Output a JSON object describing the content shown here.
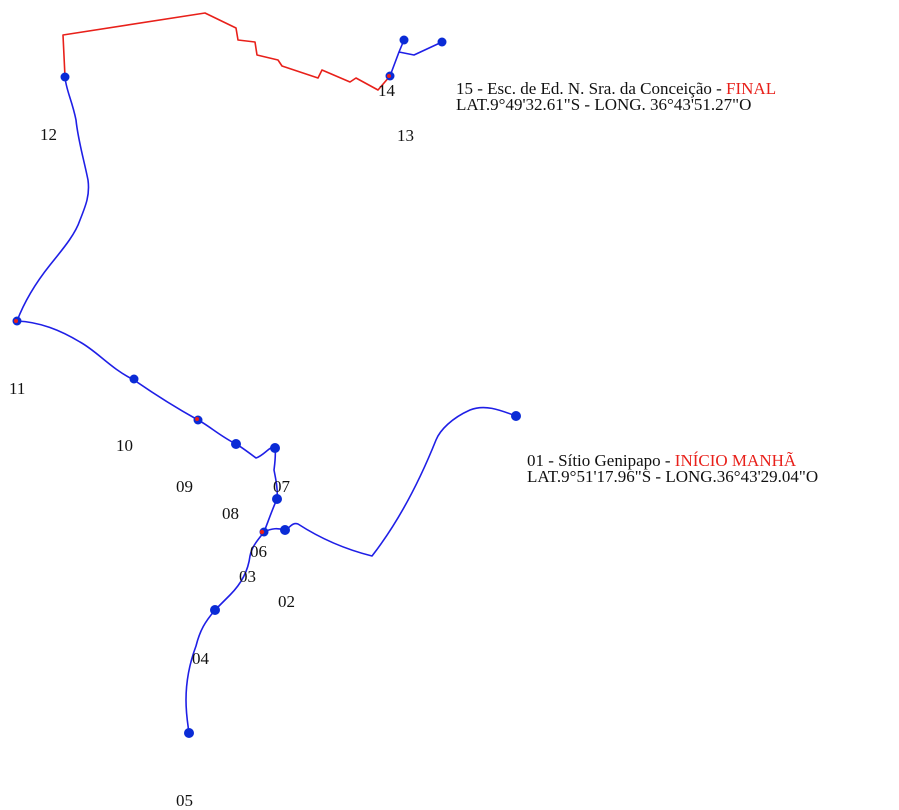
{
  "route": {
    "colors": {
      "morning": "#1f1fe6",
      "final": "#e8201a",
      "stop": "#0a2bd6",
      "stop_red_core": "#e8201a"
    },
    "stop_labels": [
      "01",
      "02",
      "03",
      "04",
      "05",
      "06",
      "07",
      "08",
      "09",
      "10",
      "11",
      "12",
      "13",
      "14"
    ],
    "start_info": {
      "prefix": "01 - Sítio Genipapo - ",
      "highlight": "INÍCIO MANHÃ",
      "coords": "LAT.9°51'17.96\"S - LONG.36°43'29.04\"O"
    },
    "end_info": {
      "prefix": "15 - Esc. de Ed. N. Sra. da Conceição - ",
      "highlight": "FINAL",
      "coords": "LAT.9°49'32.61\"S - LONG. 36°43'51.27\"O"
    }
  }
}
